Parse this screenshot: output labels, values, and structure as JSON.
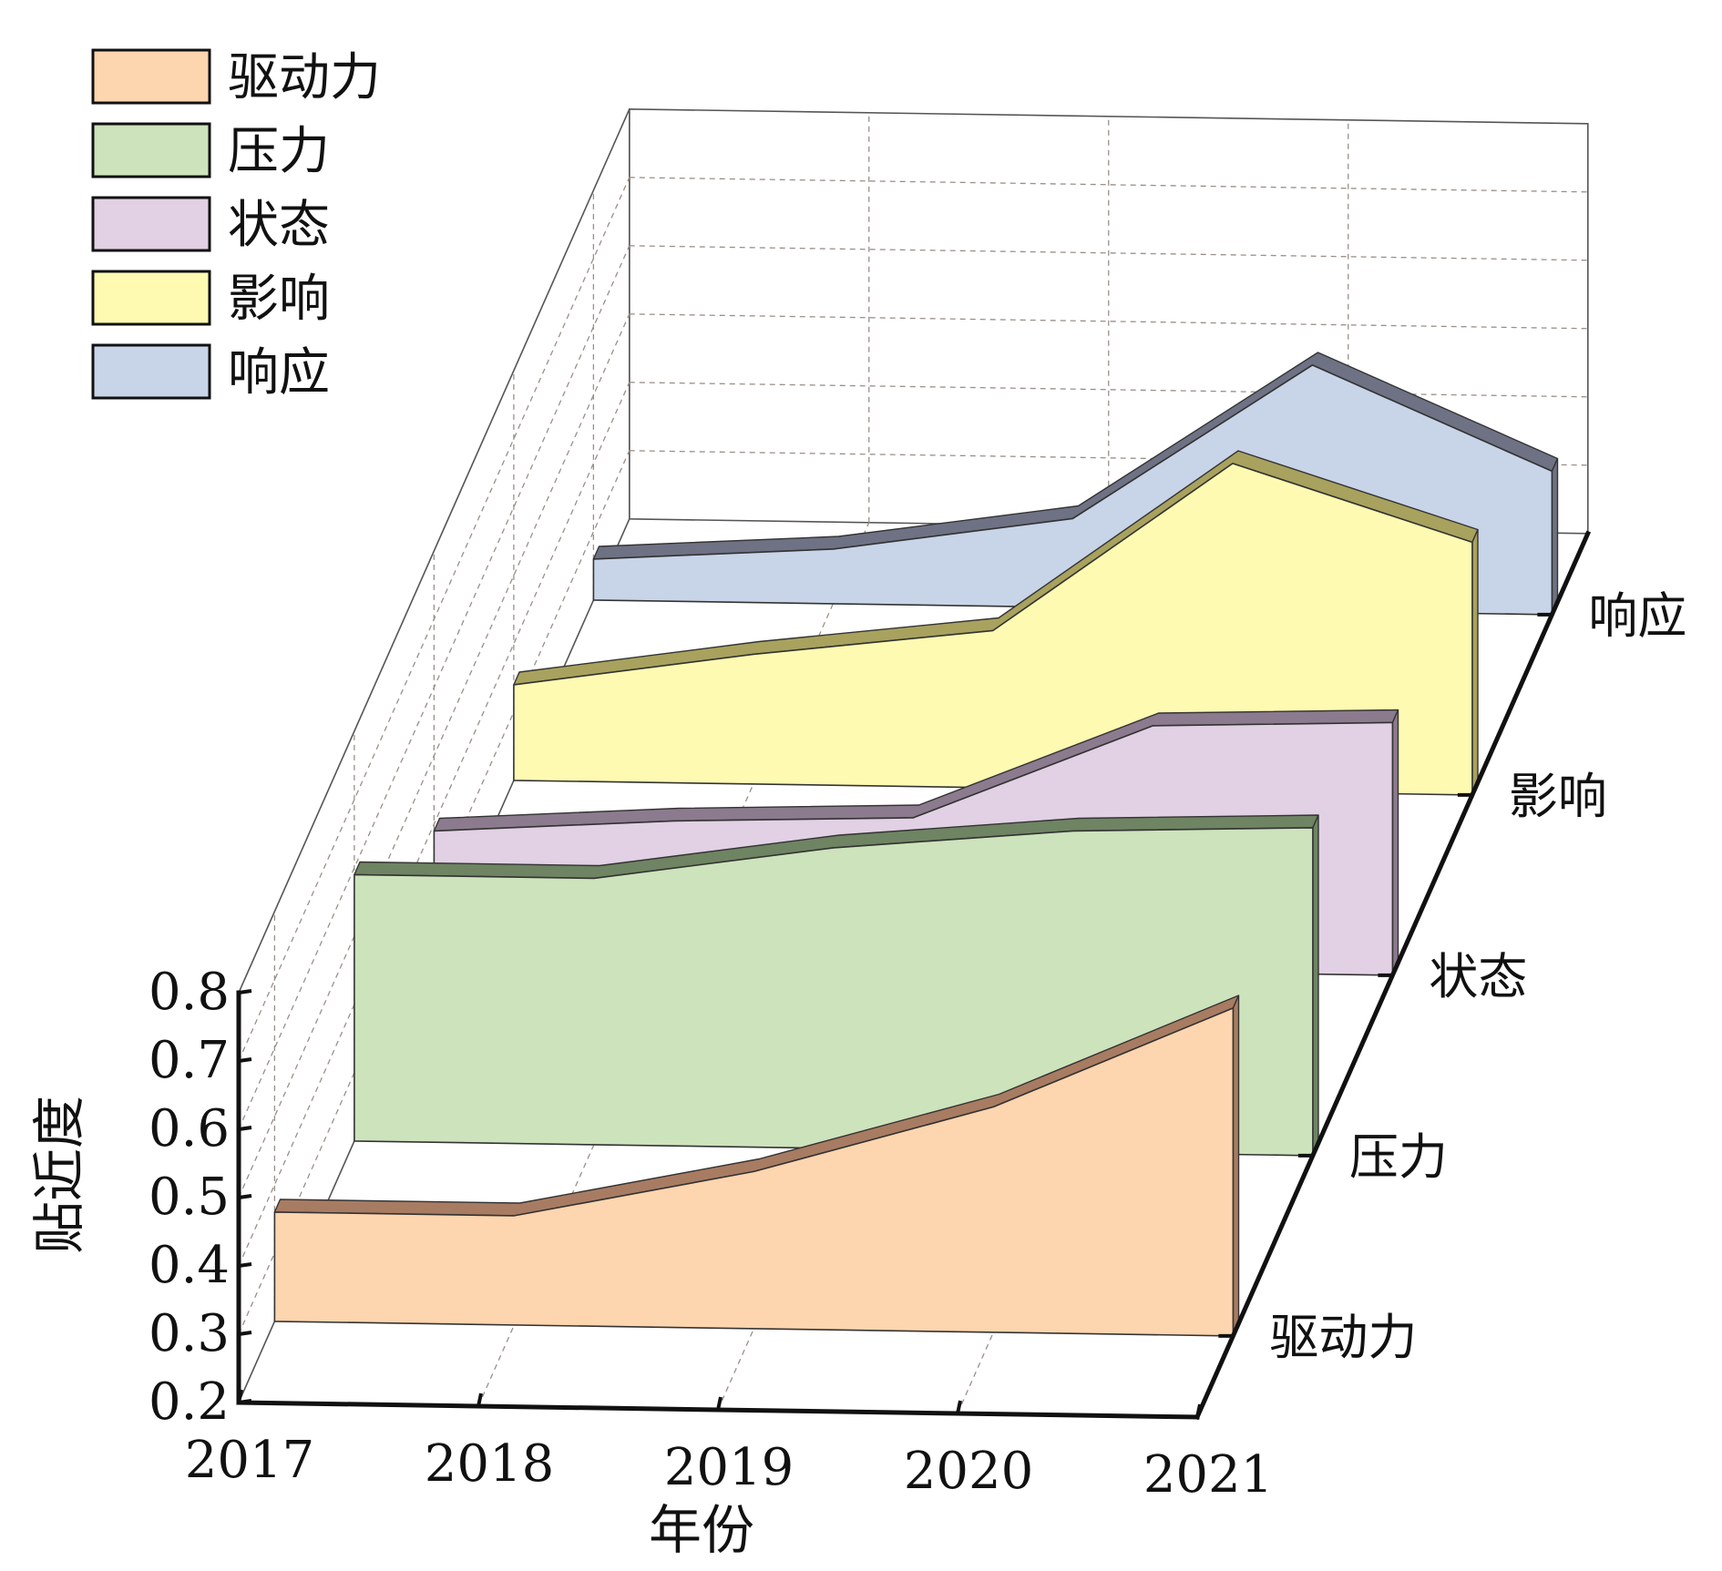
{
  "chart_data": {
    "type": "area",
    "subtype": "3d-waterfall",
    "xlabel": "年份",
    "ylabel": "贴近度",
    "x": [
      "2017",
      "2018",
      "2019",
      "2020",
      "2021"
    ],
    "ylim": [
      0.2,
      0.8
    ],
    "yticks": [
      "0.2",
      "0.3",
      "0.4",
      "0.5",
      "0.6",
      "0.7",
      "0.8"
    ],
    "grid": true,
    "legend_position": "top-left",
    "series": [
      {
        "name": "驱动力",
        "values": [
          0.36,
          0.36,
          0.43,
          0.53,
          0.68
        ],
        "color": "#FDD5AE",
        "edge": "#A87C62"
      },
      {
        "name": "压力",
        "values": [
          0.59,
          0.59,
          0.64,
          0.67,
          0.68
        ],
        "color": "#CDE3BC",
        "edge": "#6E8462"
      },
      {
        "name": "状态",
        "values": [
          0.39,
          0.41,
          0.42,
          0.56,
          0.57
        ],
        "color": "#E2D0E4",
        "edge": "#8C7A8E"
      },
      {
        "name": "影响",
        "values": [
          0.34,
          0.39,
          0.43,
          0.68,
          0.57
        ],
        "color": "#FFFAB2",
        "edge": "#A8A25E"
      },
      {
        "name": "响应",
        "values": [
          0.26,
          0.28,
          0.33,
          0.56,
          0.41
        ],
        "color": "#C8D4E8",
        "edge": "#6E7284"
      }
    ]
  }
}
